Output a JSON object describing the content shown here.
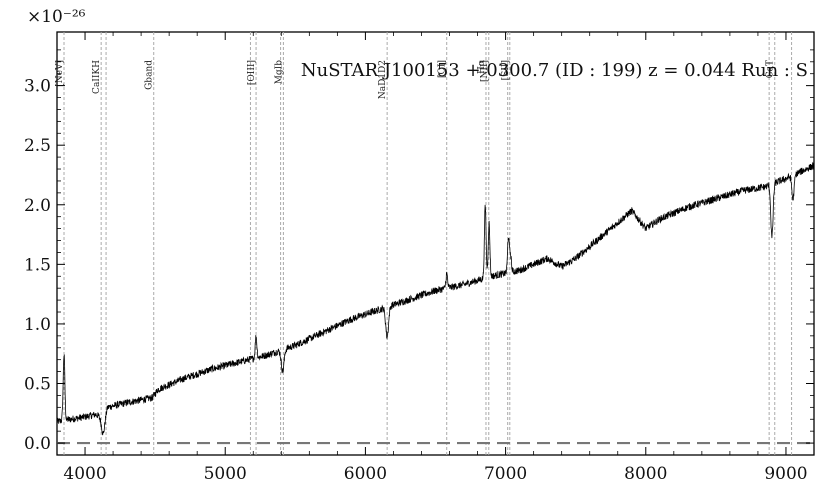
{
  "chart_data": {
    "type": "line",
    "title": "NuSTAR J100153 + 0300.7 (ID : 199)   z = 0.044   Run : S",
    "xlabel": "",
    "ylabel": "",
    "y_scale_label": "×10⁻²⁶",
    "xlim": [
      3800,
      9200
    ],
    "ylim": [
      -0.1,
      3.45
    ],
    "x_ticks": [
      4000,
      5000,
      6000,
      7000,
      8000,
      9000
    ],
    "y_ticks": [
      0.0,
      0.5,
      1.0,
      1.5,
      2.0,
      2.5,
      3.0
    ],
    "grid": false,
    "reference_line": {
      "y": 0.0,
      "style": "dashed"
    },
    "spectral_lines": [
      {
        "label": "[NeV]",
        "x": 3850
      },
      {
        "label": "CaIIKH",
        "x": 4115
      },
      {
        "label": "",
        "x": 4150
      },
      {
        "label": "Gband",
        "x": 4490
      },
      {
        "label": "",
        "x": 5180
      },
      {
        "label": "[OIII]",
        "x": 5220
      },
      {
        "label": "",
        "x": 5395
      },
      {
        "label": "MgIb",
        "x": 5415
      },
      {
        "label": "NaD1D2",
        "x": 6155
      },
      {
        "label": "[OI]",
        "x": 6580
      },
      {
        "label": "Hα",
        "x": 6860
      },
      {
        "label": "[NII]",
        "x": 6880
      },
      {
        "label": "",
        "x": 7015
      },
      {
        "label": "[SII]",
        "x": 7030
      },
      {
        "label": "",
        "x": 8880
      },
      {
        "label": "CaT",
        "x": 8920
      },
      {
        "label": "",
        "x": 9040
      }
    ],
    "series": [
      {
        "continuum": [
          [
            3800,
            0.18
          ],
          [
            3900,
            0.2
          ],
          [
            4000,
            0.22
          ],
          [
            4080,
            0.24
          ],
          [
            4130,
            0.2
          ],
          [
            4160,
            0.3
          ],
          [
            4300,
            0.34
          ],
          [
            4480,
            0.38
          ],
          [
            4520,
            0.45
          ],
          [
            4700,
            0.54
          ],
          [
            4900,
            0.62
          ],
          [
            5100,
            0.68
          ],
          [
            5300,
            0.74
          ],
          [
            5500,
            0.82
          ],
          [
            5700,
            0.93
          ],
          [
            5900,
            1.04
          ],
          [
            6100,
            1.12
          ],
          [
            6300,
            1.2
          ],
          [
            6500,
            1.28
          ],
          [
            6700,
            1.33
          ],
          [
            6840,
            1.38
          ],
          [
            6900,
            1.4
          ],
          [
            7100,
            1.45
          ],
          [
            7300,
            1.55
          ],
          [
            7400,
            1.48
          ],
          [
            7500,
            1.55
          ],
          [
            7700,
            1.75
          ],
          [
            7900,
            1.95
          ],
          [
            8000,
            1.8
          ],
          [
            8100,
            1.88
          ],
          [
            8300,
            1.98
          ],
          [
            8500,
            2.05
          ],
          [
            8700,
            2.12
          ],
          [
            8850,
            2.15
          ],
          [
            9000,
            2.22
          ],
          [
            9200,
            2.33
          ]
        ],
        "features": [
          {
            "x": 3850,
            "width": 6,
            "amp": 0.55
          },
          {
            "x": 4130,
            "width": 12,
            "amp": -0.12
          },
          {
            "x": 5220,
            "width": 6,
            "amp": 0.18
          },
          {
            "x": 5410,
            "width": 10,
            "amp": -0.18
          },
          {
            "x": 6155,
            "width": 10,
            "amp": -0.25
          },
          {
            "x": 6580,
            "width": 6,
            "amp": 0.12
          },
          {
            "x": 6855,
            "width": 6,
            "amp": 0.6
          },
          {
            "x": 6882,
            "width": 6,
            "amp": 0.45
          },
          {
            "x": 7020,
            "width": 6,
            "amp": 0.3
          },
          {
            "x": 7035,
            "width": 6,
            "amp": 0.15
          },
          {
            "x": 8900,
            "width": 8,
            "amp": -0.45
          },
          {
            "x": 9050,
            "width": 8,
            "amp": -0.2
          }
        ],
        "noise": 0.03
      }
    ]
  }
}
